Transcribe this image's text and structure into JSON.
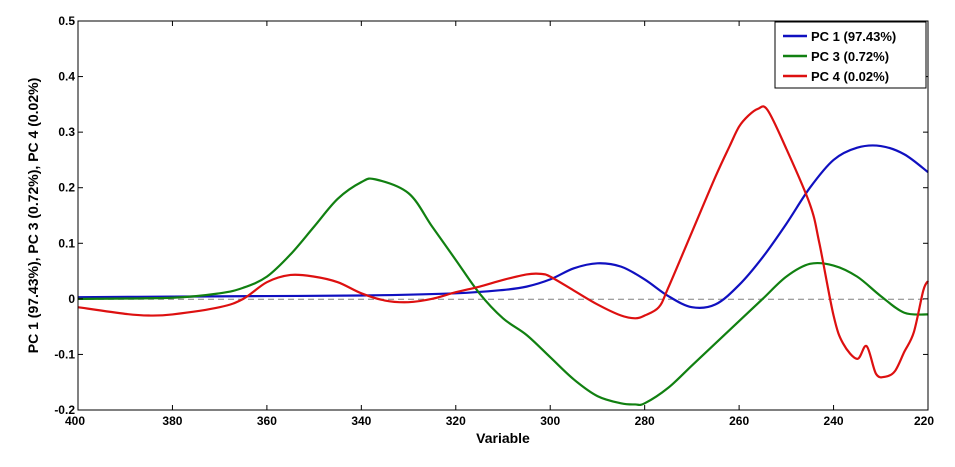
{
  "chart_data": {
    "type": "line",
    "xlabel": "Variable",
    "ylabel": "PC 1 (97.43%), PC 3 (0.72%), PC 4 (0.02%)",
    "xlim": [
      400,
      220
    ],
    "ylim": [
      -0.2,
      0.5
    ],
    "x_ticks": [
      400,
      380,
      360,
      340,
      320,
      300,
      280,
      260,
      240,
      220
    ],
    "y_ticks": [
      -0.2,
      -0.1,
      0,
      0.1,
      0.2,
      0.3,
      0.4,
      0.5
    ],
    "y_tick_labels": [
      "-0.2",
      "-0.1",
      "0",
      "0.1",
      "0.2",
      "0.3",
      "0.4",
      "0.5"
    ],
    "grid": false,
    "legend_position": "top-right",
    "zero_line": {
      "style": "dashed",
      "color": "#808080"
    },
    "series": [
      {
        "name": "PC 1 (97.43%)",
        "color": "#1010c0",
        "x": [
          400,
          380,
          360,
          340,
          320,
          310,
          305,
          300,
          295,
          290,
          285,
          280,
          275,
          270,
          265,
          260,
          255,
          250,
          245,
          240,
          235,
          230,
          225,
          220
        ],
        "y": [
          0.003,
          0.004,
          0.005,
          0.006,
          0.01,
          0.016,
          0.022,
          0.035,
          0.055,
          0.064,
          0.058,
          0.035,
          0.005,
          -0.015,
          -0.01,
          0.025,
          0.075,
          0.135,
          0.2,
          0.25,
          0.272,
          0.275,
          0.26,
          0.228
        ]
      },
      {
        "name": "PC 3 (0.72%)",
        "color": "#118011",
        "x": [
          400,
          380,
          370,
          365,
          360,
          355,
          350,
          345,
          340,
          337,
          330,
          325,
          320,
          315,
          310,
          305,
          300,
          295,
          290,
          285,
          282,
          280,
          275,
          270,
          265,
          260,
          255,
          250,
          245,
          240,
          235,
          230,
          225,
          220
        ],
        "y": [
          0.0,
          0.002,
          0.01,
          0.02,
          0.04,
          0.08,
          0.13,
          0.18,
          0.21,
          0.215,
          0.19,
          0.13,
          0.07,
          0.01,
          -0.035,
          -0.065,
          -0.105,
          -0.145,
          -0.175,
          -0.188,
          -0.19,
          -0.188,
          -0.16,
          -0.12,
          -0.08,
          -0.04,
          0.0,
          0.04,
          0.063,
          0.06,
          0.04,
          0.005,
          -0.025,
          -0.028
        ]
      },
      {
        "name": "PC 4 (0.02%)",
        "color": "#dd1010",
        "x": [
          400,
          390,
          385,
          380,
          370,
          365,
          360,
          355,
          350,
          345,
          340,
          335,
          330,
          325,
          320,
          315,
          310,
          305,
          302,
          300,
          295,
          290,
          285,
          282,
          280,
          277,
          275,
          270,
          265,
          262,
          260,
          258,
          256,
          254,
          250,
          245,
          243,
          240,
          238,
          235,
          233,
          231,
          229,
          227,
          225,
          223,
          221,
          220
        ],
        "y": [
          -0.015,
          -0.027,
          -0.03,
          -0.028,
          -0.015,
          0.0,
          0.03,
          0.043,
          0.04,
          0.03,
          0.01,
          -0.003,
          -0.006,
          0.0,
          0.012,
          0.022,
          0.034,
          0.044,
          0.045,
          0.04,
          0.015,
          -0.01,
          -0.03,
          -0.035,
          -0.03,
          -0.015,
          0.02,
          0.12,
          0.22,
          0.275,
          0.31,
          0.33,
          0.342,
          0.34,
          0.27,
          0.17,
          0.1,
          -0.03,
          -0.08,
          -0.108,
          -0.085,
          -0.135,
          -0.14,
          -0.13,
          -0.095,
          -0.06,
          0.015,
          0.032
        ]
      }
    ]
  }
}
